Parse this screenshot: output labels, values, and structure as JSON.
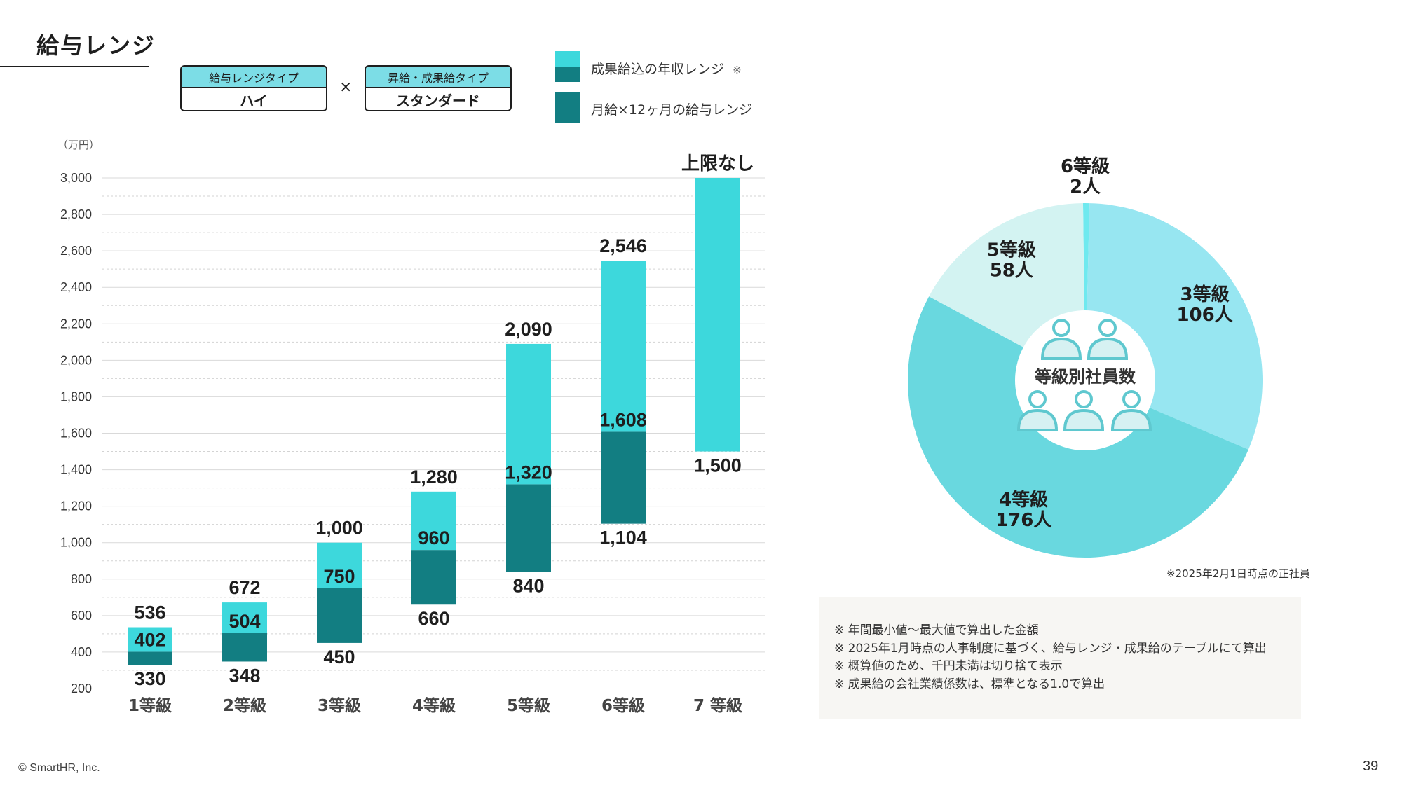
{
  "page": {
    "title": "給与レンジ",
    "footer": "© SmartHR, Inc.",
    "page_number": "39"
  },
  "tags": [
    {
      "label": "給与レンジタイプ",
      "value": "ハイ"
    },
    {
      "label": "昇給・成果給タイプ",
      "value": "スタンダード"
    }
  ],
  "times_sign": "×",
  "legend": [
    {
      "label": "成果給込の年収レンジ",
      "note": "※",
      "color": "#3dd8dc"
    },
    {
      "label": "月給×12ヶ月の給与レンジ",
      "color": "#127e82"
    }
  ],
  "chart_data": [
    {
      "type": "bar",
      "subtype": "floating-stacked-range",
      "unit": "（万円）",
      "ylim": [
        200,
        3000
      ],
      "yticks": [
        "3,000",
        "2,800",
        "2,600",
        "2,400",
        "2,200",
        "2,000",
        "1,800",
        "1,600",
        "1,400",
        "1,200",
        "1,000",
        "800",
        "600",
        "400",
        "200"
      ],
      "ytick_values": [
        3000,
        2800,
        2600,
        2400,
        2200,
        2000,
        1800,
        1600,
        1400,
        1200,
        1000,
        800,
        600,
        400,
        200
      ],
      "grid": true,
      "categories": [
        "1等級",
        "2等級",
        "3等級",
        "4等級",
        "5等級",
        "6等級",
        "7 等級"
      ],
      "series": [
        {
          "name": "月給×12ヶ月の給与レンジ",
          "color": "#127e82",
          "low": [
            330,
            348,
            450,
            660,
            840,
            1104,
            null
          ],
          "high": [
            402,
            504,
            750,
            960,
            1320,
            1608,
            null
          ]
        },
        {
          "name": "成果給込の年収レンジ",
          "color": "#3dd8dc",
          "low": [
            402,
            504,
            750,
            960,
            1320,
            1608,
            1500
          ],
          "high": [
            536,
            672,
            1000,
            1280,
            2090,
            2546,
            3000
          ]
        }
      ],
      "labels": {
        "top": [
          "536",
          "672",
          "1,000",
          "1,280",
          "2,090",
          "2,546",
          "上限なし"
        ],
        "mid": [
          "402",
          "504",
          "750",
          "960",
          "1,320",
          "1,608",
          ""
        ],
        "bottom": [
          "330",
          "348",
          "450",
          "660",
          "840",
          "1,104",
          "1,500"
        ]
      }
    },
    {
      "type": "pie",
      "subtype": "donut",
      "center_label": "等級別社員数",
      "center_icon": "people-group-icon",
      "slices": [
        {
          "label": "6等級",
          "count_label": "2人",
          "value": 2,
          "color": "#6fe9ef"
        },
        {
          "label": "3等級",
          "count_label": "106人",
          "value": 106,
          "color": "#97e6f1"
        },
        {
          "label": "4等級",
          "count_label": "176人",
          "value": 176,
          "color": "#69d8df"
        },
        {
          "label": "5等級",
          "count_label": "58人",
          "value": 58,
          "color": "#d3f3f2"
        }
      ],
      "note": "※2025年2月1日時点の正社員"
    }
  ],
  "notes": [
    "※ 年間最小値〜最大値で算出した金額",
    "※ 2025年1月時点の人事制度に基づく、給与レンジ・成果給のテーブルにて算出",
    "※ 概算値のため、千円未満は切り捨て表示",
    "※ 成果給の会社業績係数は、標準となる1.0で算出"
  ]
}
